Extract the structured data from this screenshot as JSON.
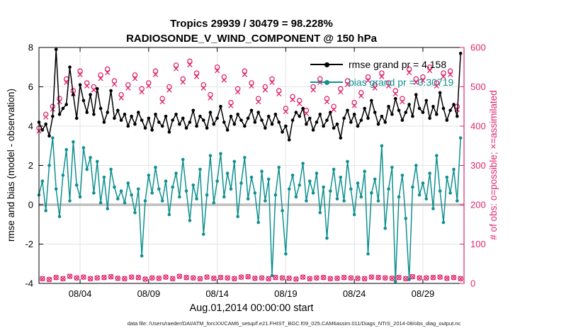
{
  "stats": {
    "region": "Tropics",
    "num_assimilated": "29939",
    "num_possible": "30479",
    "percent_assimilated": "98.228%"
  },
  "footer_text": "data file: /Users/raeder/DAI/ATM_forcXX/CAM6_setup/f.e21.FHIST_BGC.f09_025.CAM6assim.011/Diags_NTrS_2014-08/obs_diag_output.nc",
  "chart_data": {
    "type": "line",
    "title": "Tropics 29939 / 30479 = 98.228%",
    "subtitle": "RADIOSONDE_V_WIND_COMPONENT @ 150 hPa",
    "xlabel": "Aug.01,2014 00:00:00 start",
    "ylabel_left": "rmse and bias (model - observation)",
    "ylabel_right": "# of obs: o=possible; ×=assimilated",
    "ylim_left": [
      -4,
      8
    ],
    "ylim_right": [
      0,
      600
    ],
    "yticks_left": [
      -4,
      -2,
      0,
      2,
      4,
      6,
      8
    ],
    "yticks_right": [
      0,
      100,
      200,
      300,
      400,
      500,
      600
    ],
    "xlim_days": [
      1,
      32
    ],
    "xtick_days": [
      4,
      9,
      14,
      19,
      24,
      29
    ],
    "xtick_labels": [
      "08/04",
      "08/09",
      "08/14",
      "08/19",
      "08/24",
      "08/29"
    ],
    "grid": true,
    "legend_position": "top-right-inside",
    "zero_line_color": "#bfbfbf",
    "accent_color": "#e0256d",
    "x": {
      "start_day": 1.0,
      "step_days": 0.25,
      "count": 124,
      "unit": "day of Aug 2014"
    },
    "series": [
      {
        "name": "rmse",
        "legend": "rmse grand pr = 4.158",
        "color": "#000000",
        "axis": "left",
        "marker": "filled-circle",
        "values": [
          4.2,
          3.8,
          4.1,
          3.5,
          4.5,
          7.9,
          4.6,
          4.9,
          5.1,
          7.0,
          5.6,
          4.4,
          6.1,
          5.3,
          4.7,
          5.6,
          4.6,
          5.9,
          4.9,
          4.2,
          4.7,
          5.8,
          4.4,
          4.8,
          4.3,
          4.6,
          4.0,
          4.5,
          4.1,
          4.7,
          4.3,
          3.9,
          4.4,
          3.8,
          4.6,
          4.2,
          4.0,
          4.5,
          3.7,
          4.3,
          4.6,
          4.1,
          4.4,
          3.9,
          4.2,
          4.8,
          4.0,
          4.5,
          4.3,
          3.9,
          4.7,
          4.1,
          4.4,
          5.0,
          4.2,
          3.8,
          4.5,
          4.1,
          4.6,
          4.3,
          4.0,
          4.4,
          4.8,
          4.2,
          4.7,
          4.3,
          3.9,
          4.5,
          4.1,
          4.6,
          4.2,
          3.7,
          4.0,
          3.3,
          4.3,
          4.7,
          4.5,
          4.9,
          4.1,
          4.4,
          3.8,
          4.2,
          4.6,
          4.0,
          4.3,
          4.7,
          3.9,
          4.1,
          3.4,
          4.4,
          4.8,
          4.2,
          4.6,
          4.0,
          4.3,
          4.9,
          4.4,
          5.3,
          4.7,
          4.1,
          4.5,
          4.2,
          5.0,
          4.6,
          5.4,
          4.8,
          4.3,
          4.7,
          5.1,
          4.5,
          5.6,
          4.9,
          4.7,
          5.3,
          4.4,
          5.0,
          4.6,
          5.7,
          4.9,
          4.3,
          4.8,
          5.1,
          4.5,
          7.7
        ]
      },
      {
        "name": "bias",
        "legend": "bias grand pr = 0.30719",
        "color": "#109090",
        "axis": "left",
        "marker": "filled-circle",
        "values": [
          0.5,
          1.2,
          -0.3,
          2.0,
          3.4,
          0.8,
          -0.6,
          1.5,
          2.8,
          0.2,
          3.2,
          1.0,
          0.4,
          2.9,
          1.8,
          2.4,
          0.6,
          2.2,
          0.1,
          1.4,
          -0.2,
          1.8,
          0.9,
          0.3,
          0.7,
          0.1,
          1.1,
          0.5,
          -0.4,
          0.8,
          -2.6,
          0.2,
          1.5,
          0.6,
          1.9,
          0.8,
          0.2,
          1.2,
          -0.5,
          0.9,
          1.6,
          0.4,
          2.3,
          0.7,
          -0.8,
          1.0,
          0.3,
          1.8,
          -1.5,
          0.5,
          2.5,
          0.1,
          1.2,
          2.6,
          0.4,
          1.6,
          0.8,
          2.2,
          -0.6,
          1.1,
          2.4,
          0.3,
          1.4,
          0.6,
          -0.9,
          1.7,
          0.2,
          1.3,
          -3.6,
          0.5,
          1.9,
          -0.3,
          -2.5,
          0.8,
          1.5,
          0.4,
          1.0,
          2.1,
          0.2,
          1.2,
          0.6,
          1.6,
          -0.4,
          0.9,
          -1.7,
          0.7,
          1.8,
          0.3,
          1.4,
          0.2,
          2.2,
          0.8,
          -0.5,
          1.1,
          0.4,
          1.7,
          -2.5,
          0.6,
          1.3,
          0.2,
          3.0,
          -1.2,
          0.8,
          1.9,
          -3.9,
          0.4,
          1.5,
          -0.7,
          -3.8,
          0.9,
          2.0,
          0.5,
          1.1,
          0.3,
          1.6,
          -0.2,
          2.5,
          0.7,
          -0.9,
          1.4,
          0.6,
          1.8,
          0.2,
          3.4
        ]
      },
      {
        "name": "possible",
        "legend": "o = possible",
        "color": "#e0256d",
        "axis": "right",
        "marker": "o",
        "values": [
          395,
          12,
          430,
          10,
          450,
          15,
          470,
          12,
          520,
          18,
          490,
          14,
          540,
          16,
          510,
          12,
          500,
          14,
          530,
          15,
          545,
          17,
          515,
          13,
          480,
          12,
          505,
          16,
          530,
          15,
          495,
          11,
          510,
          14,
          540,
          13,
          470,
          16,
          500,
          12,
          555,
          18,
          520,
          15,
          565,
          14,
          535,
          12,
          505,
          16,
          480,
          13,
          550,
          15,
          525,
          14,
          460,
          12,
          495,
          16,
          540,
          17,
          510,
          13,
          470,
          14,
          500,
          12,
          520,
          15,
          490,
          14,
          445,
          13,
          475,
          11,
          465,
          16,
          440,
          12,
          500,
          14,
          520,
          15,
          470,
          12,
          450,
          13,
          495,
          15,
          515,
          14,
          460,
          13,
          485,
          12,
          525,
          16,
          505,
          15,
          535,
          14,
          510,
          13,
          490,
          15,
          470,
          12,
          545,
          17,
          520,
          14,
          525,
          14,
          550,
          15,
          510,
          16,
          535,
          13,
          540,
          15,
          450,
          12
        ]
      },
      {
        "name": "assimilated",
        "legend": "× = assimilated",
        "color": "#e0256d",
        "axis": "right",
        "marker": "x",
        "values": [
          388,
          12,
          423,
          10,
          443,
          15,
          462,
          12,
          511,
          18,
          482,
          14,
          531,
          16,
          502,
          12,
          492,
          14,
          521,
          15,
          536,
          17,
          507,
          13,
          472,
          12,
          497,
          16,
          521,
          15,
          487,
          11,
          502,
          14,
          531,
          13,
          462,
          16,
          492,
          12,
          546,
          18,
          512,
          15,
          556,
          14,
          526,
          12,
          497,
          16,
          472,
          13,
          541,
          15,
          517,
          14,
          452,
          12,
          487,
          16,
          531,
          17,
          502,
          13,
          462,
          14,
          492,
          12,
          511,
          15,
          482,
          14,
          437,
          13,
          467,
          11,
          457,
          16,
          432,
          12,
          492,
          14,
          511,
          15,
          462,
          12,
          442,
          13,
          487,
          15,
          506,
          14,
          452,
          13,
          477,
          12,
          516,
          16,
          497,
          15,
          526,
          14,
          502,
          13,
          482,
          15,
          462,
          12,
          536,
          17,
          511,
          14,
          516,
          14,
          541,
          15,
          502,
          16,
          526,
          13,
          531,
          15,
          442,
          12
        ]
      }
    ]
  }
}
